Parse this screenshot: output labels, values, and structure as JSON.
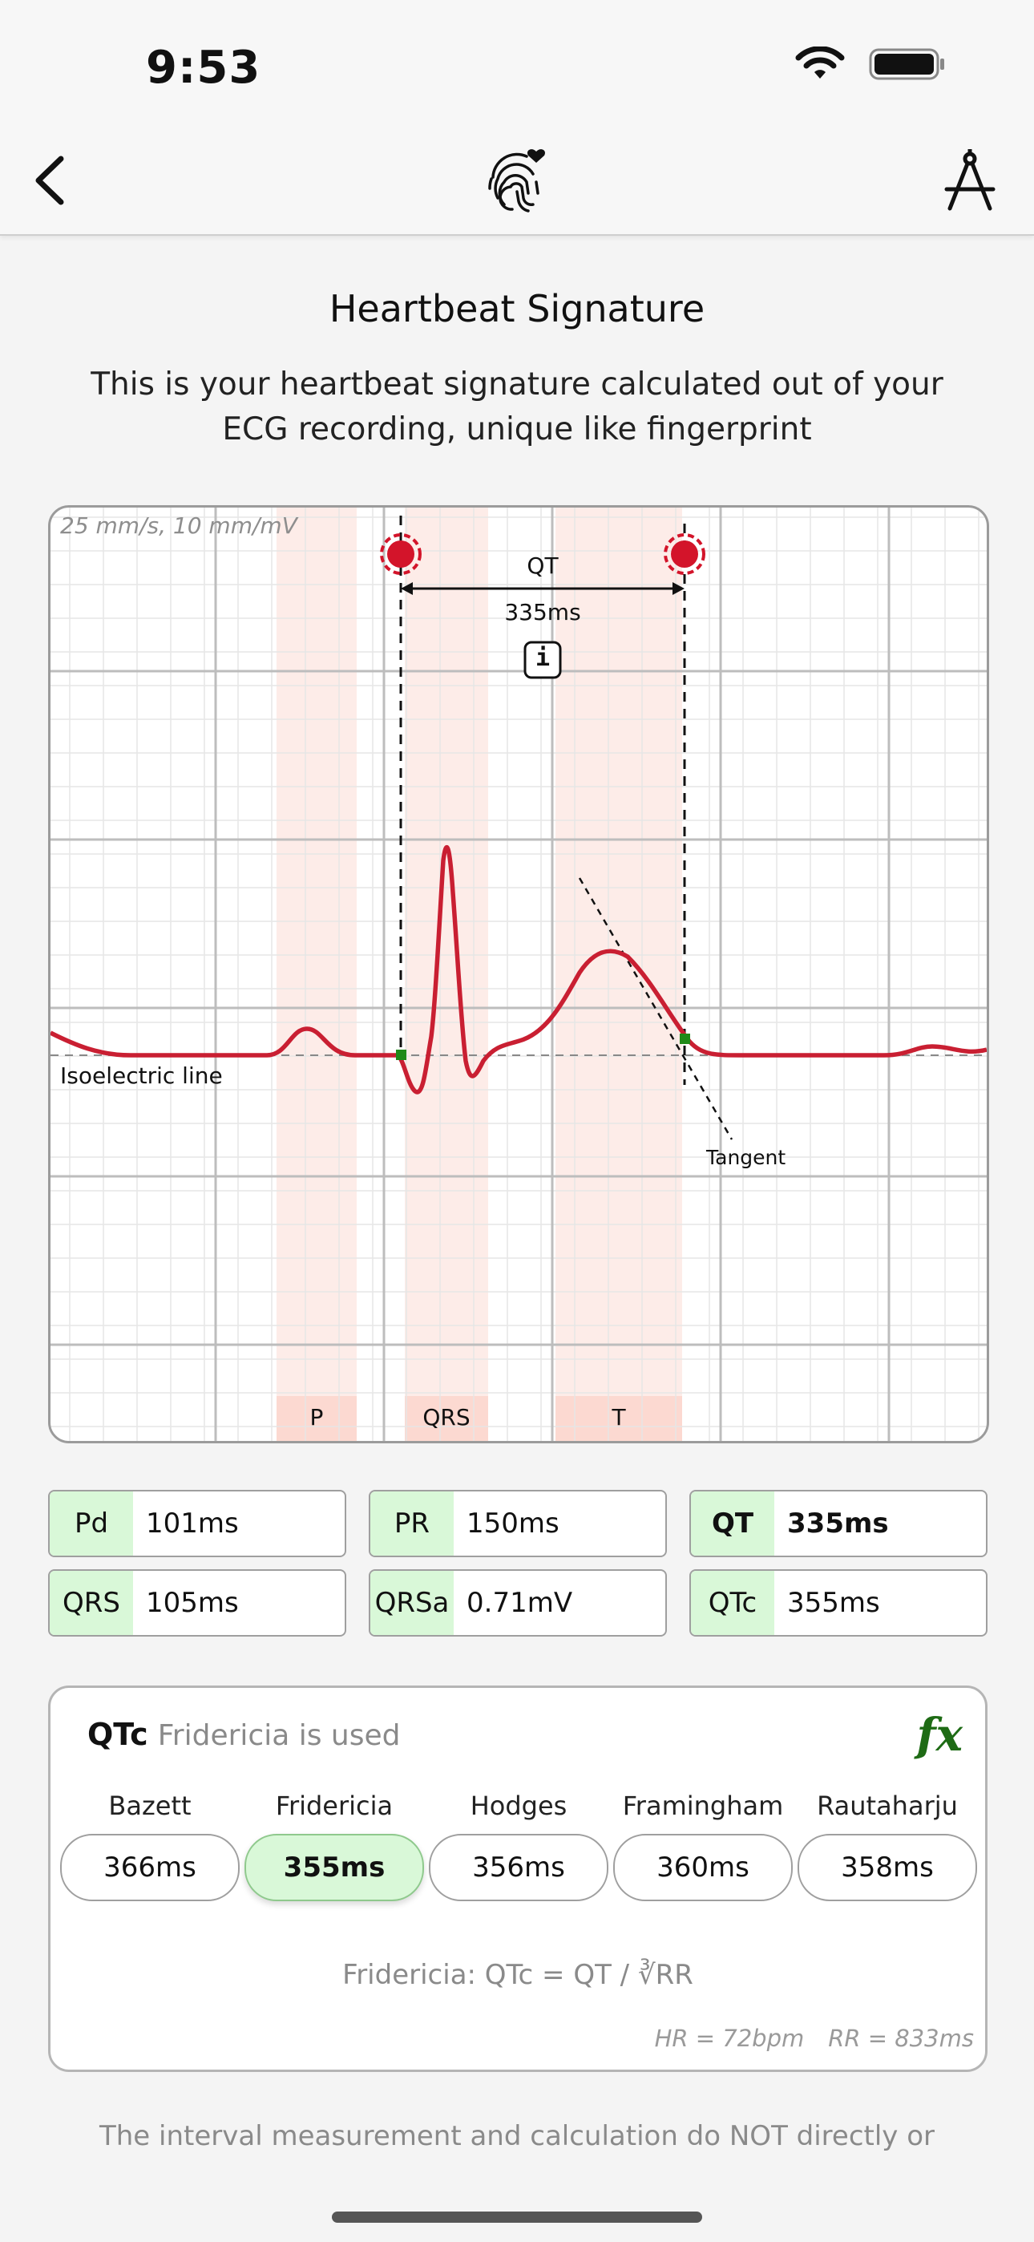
{
  "status": {
    "time": "9:53"
  },
  "nav": {
    "back": "back",
    "center_icon": "fingerprint-heart-icon",
    "right_icon": "compass-icon"
  },
  "header": {
    "title": "Heartbeat Signature",
    "subtitle": "This is your heartbeat signature calculated out of your ECG recording, unique like fingerprint"
  },
  "ecg": {
    "scale": "25 mm/s, 10 mm/mV",
    "qt_label": "QT",
    "qt_value": "335ms",
    "info_symbol": "i",
    "isoelectric": "Isoelectric line",
    "tangent": "Tangent",
    "regions": [
      "P",
      "QRS",
      "T"
    ]
  },
  "metrics": [
    {
      "key": "Pd",
      "value": "101ms"
    },
    {
      "key": "PR",
      "value": "150ms"
    },
    {
      "key": "QT",
      "value": "335ms",
      "bold": true
    },
    {
      "key": "QRS",
      "value": "105ms"
    },
    {
      "key": "QRSa",
      "value": "0.71mV"
    },
    {
      "key": "QTc",
      "value": "355ms"
    }
  ],
  "qtc": {
    "title": "QTc",
    "subtitle": "Fridericia is used",
    "fx": "fx",
    "methods": [
      {
        "name": "Bazett",
        "value": "366ms"
      },
      {
        "name": "Fridericia",
        "value": "355ms",
        "selected": true
      },
      {
        "name": "Hodges",
        "value": "356ms"
      },
      {
        "name": "Framingham",
        "value": "360ms"
      },
      {
        "name": "Rautaharju",
        "value": "358ms"
      }
    ],
    "formula": "Fridericia: QTc = QT / ∛RR",
    "hr": "HR = 72bpm",
    "rr": "RR = 833ms"
  },
  "disclaimer": "The interval measurement and calculation do NOT directly or",
  "colors": {
    "accent_green": "#d9f8d8",
    "ecg_red": "#c91f32",
    "region_pink": "#fde8e4"
  }
}
